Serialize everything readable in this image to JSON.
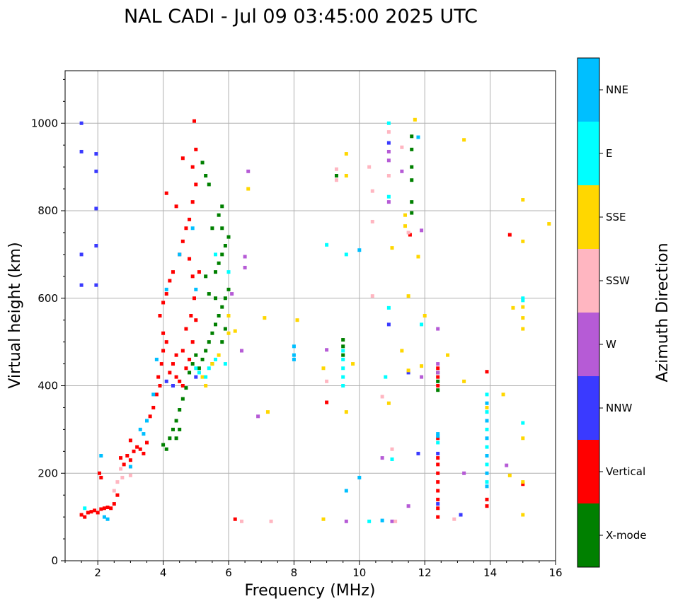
{
  "chart_data": {
    "type": "scatter",
    "title": "NAL CADI - Jul 09 03:45:00 2025 UTC",
    "xlabel": "Frequency (MHz)",
    "ylabel": "Virtual height (km)",
    "xlim": [
      1,
      16
    ],
    "ylim": [
      0,
      1120
    ],
    "xticks": [
      2,
      4,
      6,
      8,
      10,
      12,
      14,
      16
    ],
    "yticks": [
      0,
      200,
      400,
      600,
      800,
      1000
    ],
    "grid": true,
    "colorbar": {
      "label": "Azimuth Direction",
      "categories": [
        {
          "name": "X-mode",
          "color": "#008000"
        },
        {
          "name": "Vertical",
          "color": "#ff0000"
        },
        {
          "name": "NNW",
          "color": "#3a3aff"
        },
        {
          "name": "W",
          "color": "#b65bd6"
        },
        {
          "name": "SSW",
          "color": "#ffb6c1"
        },
        {
          "name": "SSE",
          "color": "#ffd700"
        },
        {
          "name": "E",
          "color": "#00ffff"
        },
        {
          "name": "NNE",
          "color": "#00bfff"
        }
      ]
    },
    "series": [
      {
        "name": "Vertical",
        "points": [
          [
            1.5,
            105
          ],
          [
            1.6,
            100
          ],
          [
            1.7,
            110
          ],
          [
            1.8,
            112
          ],
          [
            1.9,
            115
          ],
          [
            2.0,
            110
          ],
          [
            2.1,
            118
          ],
          [
            2.2,
            120
          ],
          [
            2.3,
            122
          ],
          [
            2.4,
            120
          ],
          [
            2.5,
            130
          ],
          [
            2.6,
            150
          ],
          [
            2.05,
            200
          ],
          [
            2.1,
            190
          ],
          [
            2.8,
            220
          ],
          [
            2.9,
            240
          ],
          [
            3.0,
            230
          ],
          [
            3.1,
            250
          ],
          [
            3.2,
            260
          ],
          [
            3.3,
            255
          ],
          [
            3.4,
            245
          ],
          [
            3.5,
            270
          ],
          [
            2.7,
            235
          ],
          [
            3.0,
            275
          ],
          [
            3.6,
            330
          ],
          [
            3.7,
            350
          ],
          [
            3.8,
            380
          ],
          [
            3.9,
            400
          ],
          [
            3.85,
            420
          ],
          [
            3.95,
            450
          ],
          [
            4.0,
            480
          ],
          [
            4.0,
            520
          ],
          [
            3.9,
            560
          ],
          [
            4.0,
            590
          ],
          [
            4.1,
            500
          ],
          [
            4.2,
            430
          ],
          [
            4.3,
            450
          ],
          [
            4.4,
            420
          ],
          [
            4.5,
            410
          ],
          [
            4.6,
            400
          ],
          [
            4.7,
            440
          ],
          [
            4.8,
            460
          ],
          [
            4.4,
            470
          ],
          [
            4.6,
            480
          ],
          [
            4.1,
            610
          ],
          [
            4.2,
            640
          ],
          [
            4.3,
            660
          ],
          [
            4.5,
            700
          ],
          [
            4.6,
            730
          ],
          [
            4.7,
            760
          ],
          [
            4.8,
            780
          ],
          [
            4.9,
            820
          ],
          [
            5.0,
            860
          ],
          [
            4.9,
            900
          ],
          [
            5.0,
            940
          ],
          [
            4.95,
            1005
          ],
          [
            4.6,
            920
          ],
          [
            4.4,
            810
          ],
          [
            4.1,
            840
          ],
          [
            4.8,
            690
          ],
          [
            4.9,
            650
          ],
          [
            4.95,
            600
          ],
          [
            4.85,
            560
          ],
          [
            4.7,
            530
          ],
          [
            4.9,
            500
          ],
          [
            5.0,
            550
          ],
          [
            5.1,
            660
          ],
          [
            12.4,
            100
          ],
          [
            12.4,
            120
          ],
          [
            12.4,
            140
          ],
          [
            12.4,
            160
          ],
          [
            12.4,
            180
          ],
          [
            12.4,
            200
          ],
          [
            12.4,
            220
          ],
          [
            12.4,
            235
          ],
          [
            12.4,
            280
          ],
          [
            12.4,
            400
          ],
          [
            12.4,
            420
          ],
          [
            12.4,
            440
          ],
          [
            13.9,
            125
          ],
          [
            13.9,
            140
          ],
          [
            13.9,
            432
          ],
          [
            14.6,
            745
          ],
          [
            15.0,
            175
          ],
          [
            6.2,
            95
          ],
          [
            9.0,
            362
          ],
          [
            11.55,
            745
          ]
        ]
      },
      {
        "name": "X-mode",
        "points": [
          [
            4.0,
            265
          ],
          [
            4.1,
            255
          ],
          [
            4.2,
            280
          ],
          [
            4.3,
            300
          ],
          [
            4.4,
            320
          ],
          [
            4.5,
            345
          ],
          [
            4.6,
            370
          ],
          [
            4.7,
            395
          ],
          [
            4.5,
            300
          ],
          [
            4.4,
            280
          ],
          [
            4.8,
            430
          ],
          [
            4.9,
            450
          ],
          [
            5.0,
            470
          ],
          [
            5.1,
            440
          ],
          [
            5.2,
            460
          ],
          [
            5.3,
            480
          ],
          [
            5.4,
            500
          ],
          [
            5.5,
            520
          ],
          [
            5.6,
            540
          ],
          [
            5.7,
            560
          ],
          [
            5.8,
            580
          ],
          [
            5.9,
            600
          ],
          [
            6.0,
            620
          ],
          [
            5.5,
            450
          ],
          [
            5.8,
            500
          ],
          [
            5.9,
            530
          ],
          [
            5.6,
            660
          ],
          [
            5.7,
            680
          ],
          [
            5.8,
            700
          ],
          [
            5.9,
            720
          ],
          [
            6.0,
            740
          ],
          [
            5.8,
            760
          ],
          [
            5.7,
            790
          ],
          [
            5.8,
            810
          ],
          [
            5.3,
            650
          ],
          [
            5.4,
            610
          ],
          [
            5.6,
            600
          ],
          [
            5.5,
            760
          ],
          [
            5.4,
            860
          ],
          [
            5.3,
            880
          ],
          [
            5.2,
            910
          ],
          [
            9.5,
            470
          ],
          [
            9.5,
            490
          ],
          [
            9.5,
            505
          ],
          [
            9.3,
            880
          ],
          [
            11.6,
            970
          ],
          [
            11.6,
            940
          ],
          [
            11.6,
            900
          ],
          [
            11.6,
            870
          ],
          [
            11.6,
            820
          ],
          [
            11.6,
            795
          ],
          [
            12.4,
            390
          ],
          [
            12.4,
            410
          ],
          [
            12.4,
            430
          ]
        ]
      },
      {
        "name": "NNW",
        "points": [
          [
            1.5,
            1000
          ],
          [
            1.5,
            935
          ],
          [
            1.95,
            930
          ],
          [
            1.95,
            890
          ],
          [
            1.5,
            700
          ],
          [
            1.5,
            630
          ],
          [
            1.95,
            630
          ],
          [
            1.95,
            720
          ],
          [
            1.95,
            805
          ],
          [
            4.1,
            410
          ],
          [
            4.3,
            400
          ],
          [
            5.0,
            420
          ],
          [
            12.4,
            245
          ],
          [
            11.5,
            430
          ],
          [
            10.9,
            540
          ],
          [
            10.9,
            955
          ],
          [
            12.4,
            130
          ],
          [
            13.1,
            105
          ],
          [
            11.8,
            245
          ]
        ]
      },
      {
        "name": "W",
        "points": [
          [
            6.6,
            890
          ],
          [
            6.5,
            695
          ],
          [
            6.5,
            670
          ],
          [
            6.1,
            610
          ],
          [
            6.4,
            480
          ],
          [
            9.0,
            482
          ],
          [
            11.3,
            890
          ],
          [
            10.9,
            935
          ],
          [
            10.9,
            915
          ],
          [
            10.9,
            820
          ],
          [
            12.4,
            530
          ],
          [
            12.4,
            450
          ],
          [
            12.4,
            430
          ],
          [
            13.2,
            200
          ],
          [
            14.5,
            218
          ],
          [
            11.9,
            755
          ],
          [
            11.9,
            420
          ],
          [
            10.7,
            235
          ],
          [
            11.5,
            125
          ],
          [
            6.9,
            330
          ],
          [
            9.6,
            90
          ],
          [
            11.0,
            90
          ]
        ]
      },
      {
        "name": "SSW",
        "points": [
          [
            2.5,
            160
          ],
          [
            2.6,
            180
          ],
          [
            2.7,
            210
          ],
          [
            2.75,
            190
          ],
          [
            3.0,
            195
          ],
          [
            9.3,
            895
          ],
          [
            9.3,
            870
          ],
          [
            10.3,
            900
          ],
          [
            10.4,
            845
          ],
          [
            10.4,
            775
          ],
          [
            10.9,
            980
          ],
          [
            10.9,
            880
          ],
          [
            11.3,
            945
          ],
          [
            11.5,
            750
          ],
          [
            10.4,
            605
          ],
          [
            10.7,
            375
          ],
          [
            11.0,
            255
          ],
          [
            6.4,
            90
          ],
          [
            7.3,
            90
          ],
          [
            11.1,
            90
          ],
          [
            12.9,
            95
          ],
          [
            9.0,
            410
          ]
        ]
      },
      {
        "name": "SSE",
        "points": [
          [
            5.2,
            420
          ],
          [
            5.3,
            400
          ],
          [
            5.5,
            450
          ],
          [
            5.7,
            470
          ],
          [
            6.0,
            560
          ],
          [
            6.0,
            520
          ],
          [
            6.2,
            525
          ],
          [
            6.6,
            850
          ],
          [
            7.1,
            555
          ],
          [
            7.2,
            340
          ],
          [
            8.1,
            550
          ],
          [
            8.9,
            440
          ],
          [
            8.9,
            95
          ],
          [
            9.6,
            930
          ],
          [
            9.6,
            880
          ],
          [
            9.6,
            340
          ],
          [
            9.8,
            450
          ],
          [
            10.9,
            360
          ],
          [
            11.0,
            715
          ],
          [
            11.4,
            790
          ],
          [
            11.4,
            765
          ],
          [
            11.5,
            605
          ],
          [
            11.3,
            480
          ],
          [
            11.5,
            435
          ],
          [
            11.7,
            1008
          ],
          [
            11.8,
            695
          ],
          [
            11.9,
            445
          ],
          [
            12.0,
            560
          ],
          [
            12.7,
            470
          ],
          [
            13.2,
            962
          ],
          [
            13.2,
            410
          ],
          [
            14.4,
            380
          ],
          [
            14.6,
            195
          ],
          [
            15.0,
            825
          ],
          [
            15.0,
            730
          ],
          [
            15.0,
            580
          ],
          [
            15.0,
            555
          ],
          [
            15.0,
            530
          ],
          [
            15.0,
            280
          ],
          [
            15.0,
            180
          ],
          [
            15.0,
            105
          ],
          [
            15.8,
            770
          ],
          [
            14.7,
            578
          ],
          [
            13.9,
            350
          ]
        ]
      },
      {
        "name": "E",
        "points": [
          [
            1.6,
            120
          ],
          [
            5.0,
            440
          ],
          [
            5.1,
            430
          ],
          [
            5.3,
            420
          ],
          [
            5.4,
            440
          ],
          [
            5.6,
            460
          ],
          [
            5.9,
            450
          ],
          [
            6.0,
            660
          ],
          [
            5.6,
            700
          ],
          [
            9.0,
            722
          ],
          [
            9.5,
            480
          ],
          [
            9.5,
            460
          ],
          [
            9.5,
            440
          ],
          [
            9.5,
            420
          ],
          [
            9.5,
            400
          ],
          [
            9.6,
            700
          ],
          [
            10.3,
            90
          ],
          [
            10.8,
            420
          ],
          [
            10.9,
            1000
          ],
          [
            10.9,
            832
          ],
          [
            10.9,
            578
          ],
          [
            11.0,
            232
          ],
          [
            11.9,
            540
          ],
          [
            12.4,
            270
          ],
          [
            13.9,
            380
          ],
          [
            13.9,
            340
          ],
          [
            13.9,
            300
          ],
          [
            13.9,
            260
          ],
          [
            13.9,
            220
          ],
          [
            13.9,
            180
          ],
          [
            15.0,
            600
          ],
          [
            15.0,
            595
          ],
          [
            15.0,
            315
          ]
        ]
      },
      {
        "name": "NNE",
        "points": [
          [
            2.2,
            100
          ],
          [
            2.3,
            95
          ],
          [
            2.1,
            240
          ],
          [
            3.3,
            300
          ],
          [
            3.5,
            320
          ],
          [
            3.4,
            290
          ],
          [
            3.0,
            215
          ],
          [
            3.8,
            460
          ],
          [
            3.7,
            380
          ],
          [
            4.1,
            620
          ],
          [
            4.5,
            700
          ],
          [
            4.9,
            760
          ],
          [
            5.0,
            620
          ],
          [
            8.0,
            490
          ],
          [
            8.0,
            470
          ],
          [
            8.0,
            460
          ],
          [
            9.6,
            160
          ],
          [
            10.0,
            190
          ],
          [
            10.0,
            710
          ],
          [
            10.7,
            92
          ],
          [
            11.8,
            968
          ],
          [
            12.4,
            290
          ],
          [
            12.4,
            285
          ],
          [
            13.9,
            360
          ],
          [
            13.9,
            320
          ],
          [
            13.9,
            280
          ],
          [
            13.9,
            240
          ],
          [
            13.9,
            200
          ],
          [
            13.9,
            170
          ]
        ]
      }
    ]
  }
}
